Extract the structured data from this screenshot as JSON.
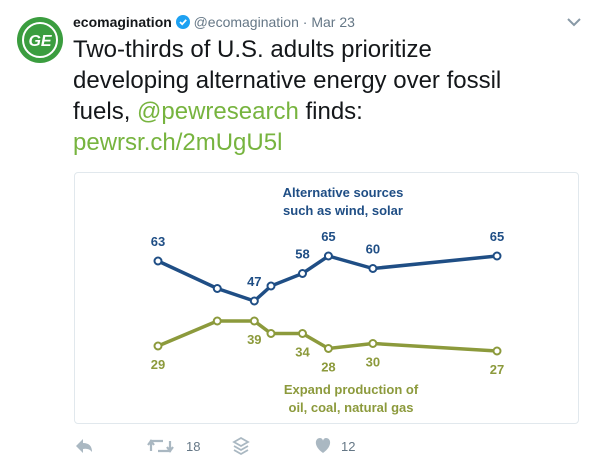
{
  "tweet": {
    "avatar_text": "GE",
    "author_name": "ecomagination",
    "handle": "@ecomagination",
    "separator": "·",
    "date": "Mar 23",
    "text": [
      "Two-thirds of U.S. adults prioritize developing alternative energy over fossil fuels, ",
      "@pewresearch",
      " finds: ",
      "pewrsr.ch/2mUgU5l"
    ],
    "retweets": 18,
    "likes": 12
  },
  "chart_data": {
    "type": "line",
    "x": [
      0,
      16,
      26,
      30.5,
      39,
      46,
      58,
      91.5
    ],
    "xlim": [
      0,
      91.5
    ],
    "ylim": [
      20,
      70
    ],
    "series": [
      {
        "name": "Alternative sources such as wind, solar",
        "name_lines": [
          "Alternative sources",
          "such as wind, solar"
        ],
        "color": "#1f4e85",
        "values": [
          63,
          52,
          47,
          53,
          58,
          65,
          60,
          65
        ],
        "value_labels": [
          "63",
          null,
          "47",
          null,
          "58",
          "65",
          "60",
          "65"
        ]
      },
      {
        "name": "Expand production of oil, coal, natural gas",
        "name_lines": [
          "Expand production of",
          "oil, coal, natural gas"
        ],
        "color": "#8c9a3c",
        "values": [
          29,
          39,
          39,
          34,
          34,
          28,
          30,
          27
        ],
        "value_labels": [
          "29",
          null,
          "39",
          null,
          "34",
          "28",
          "30",
          "27"
        ]
      }
    ]
  }
}
